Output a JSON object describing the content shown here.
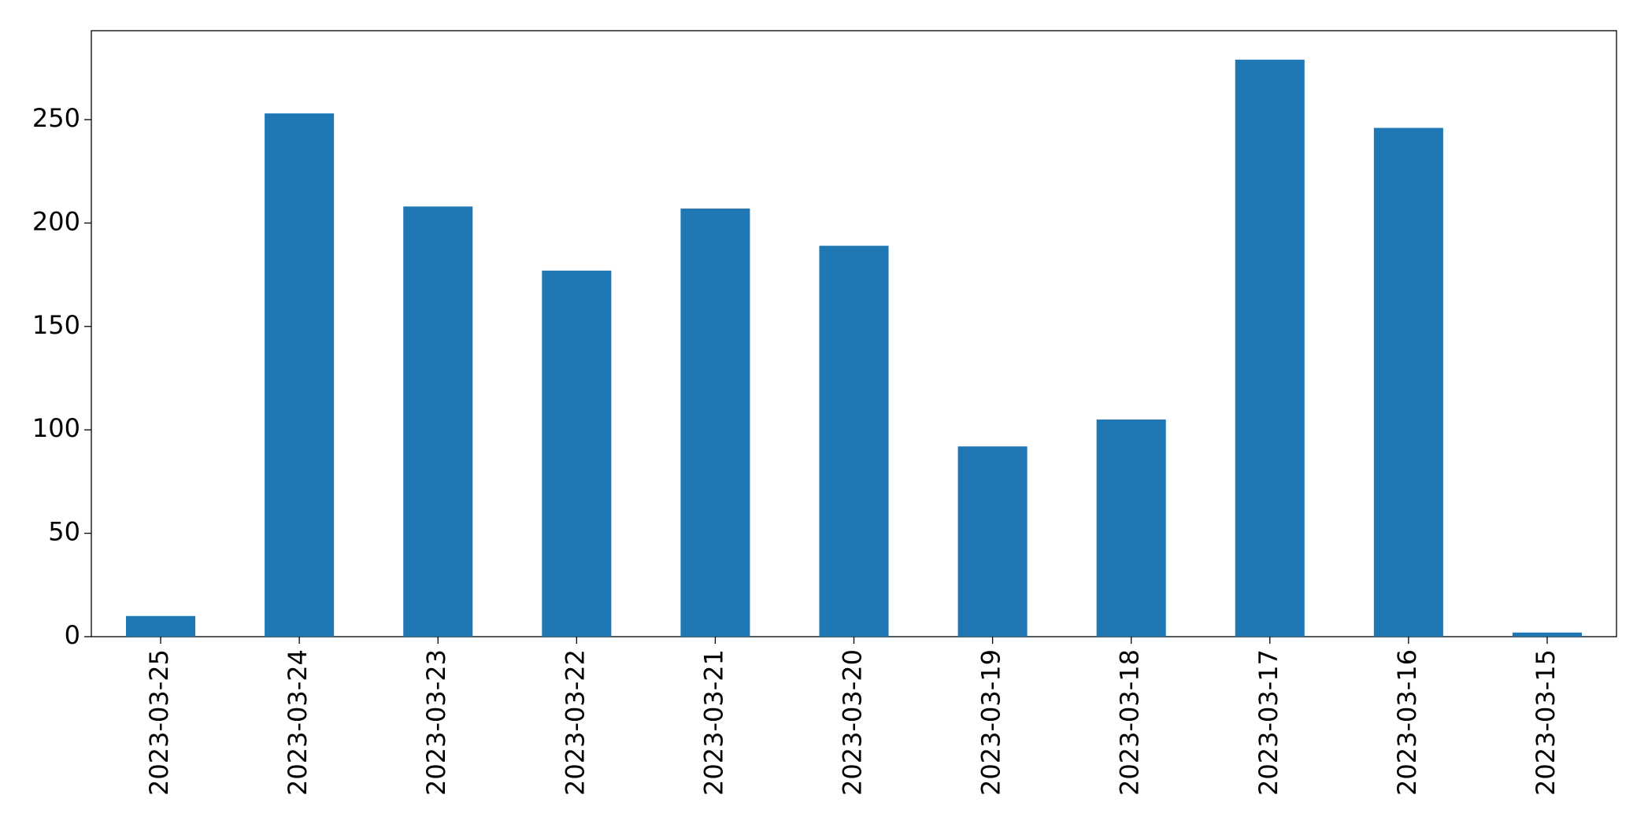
{
  "chart_data": {
    "type": "bar",
    "categories": [
      "2023-03-25",
      "2023-03-24",
      "2023-03-23",
      "2023-03-22",
      "2023-03-21",
      "2023-03-20",
      "2023-03-19",
      "2023-03-18",
      "2023-03-17",
      "2023-03-16",
      "2023-03-15"
    ],
    "values": [
      10,
      253,
      208,
      177,
      207,
      189,
      92,
      105,
      279,
      246,
      2
    ],
    "color": "#1f77b4",
    "ylim": [
      0,
      293
    ],
    "yticks": [
      0,
      50,
      100,
      150,
      200,
      250
    ],
    "grid": false
  }
}
